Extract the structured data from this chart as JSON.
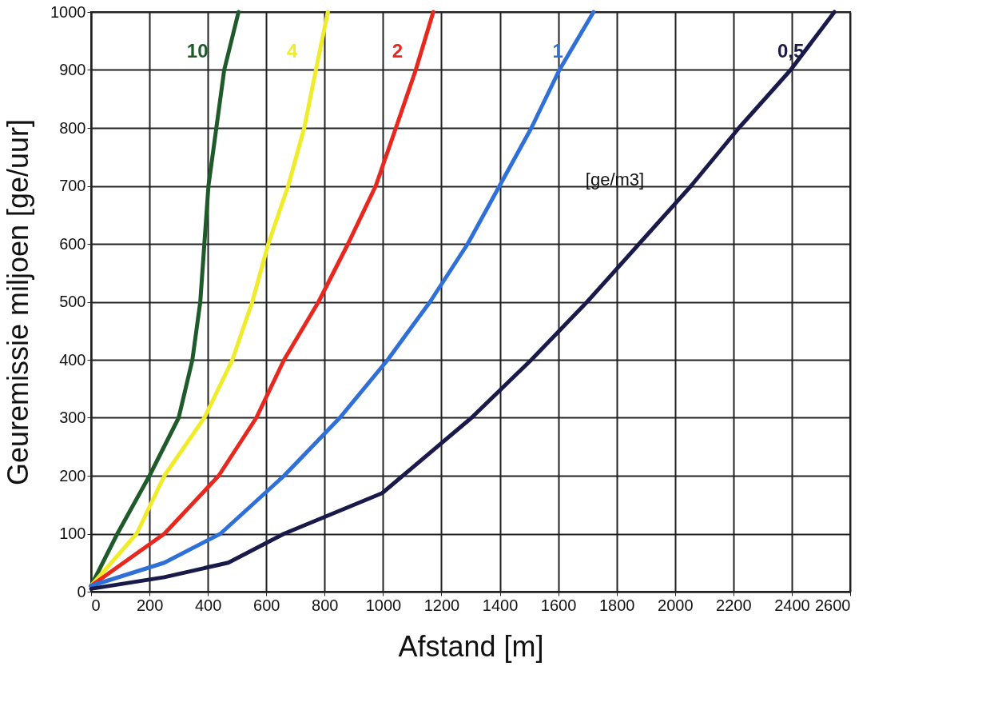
{
  "chart_data": {
    "type": "line",
    "xlabel": "Afstand [m]",
    "ylabel": "Geuremissie miljoen [ge/uur]",
    "xlim": [
      0,
      2600
    ],
    "xticks": [
      0,
      200,
      400,
      600,
      800,
      1000,
      1200,
      1400,
      1600,
      1800,
      2000,
      2200,
      2400,
      2600
    ],
    "ylim": [
      0,
      1000
    ],
    "yticks": [
      0,
      100,
      200,
      300,
      400,
      500,
      600,
      700,
      800,
      900,
      1000
    ],
    "grid": true,
    "marker": "none",
    "line_style": "solid",
    "annotations": [
      "[ge/m3]"
    ],
    "series": [
      {
        "name": "10",
        "color": "#1e5a2a",
        "x": [
          0,
          90,
          200,
          300,
          347,
          374,
          388,
          402,
          429,
          456,
          505
        ],
        "values": [
          10,
          100,
          200,
          300,
          400,
          500,
          600,
          700,
          800,
          900,
          1000
        ]
      },
      {
        "name": "4",
        "color": "#f0ec2a",
        "x": [
          0,
          156,
          251,
          388,
          484,
          552,
          607,
          675,
          730,
          770,
          811
        ],
        "values": [
          10,
          100,
          200,
          300,
          400,
          500,
          600,
          700,
          800,
          900,
          1000
        ]
      },
      {
        "name": "2",
        "color": "#e8281e",
        "x": [
          0,
          251,
          437,
          566,
          661,
          779,
          880,
          975,
          1044,
          1112,
          1172
        ],
        "values": [
          10,
          100,
          200,
          300,
          400,
          500,
          600,
          700,
          800,
          900,
          1000
        ]
      },
      {
        "name": "1",
        "color": "#2f6fd8",
        "x": [
          0,
          251,
          443,
          661,
          852,
          1016,
          1161,
          1290,
          1399,
          1508,
          1604,
          1721
        ],
        "values": [
          10,
          50,
          100,
          200,
          300,
          400,
          500,
          600,
          700,
          800,
          900,
          1000
        ]
      },
      {
        "name": "0,5",
        "color": "#1a1a4a",
        "x": [
          0,
          251,
          470,
          661,
          997,
          1303,
          1508,
          1699,
          1877,
          2055,
          2219,
          2396,
          2546
        ],
        "values": [
          5,
          25,
          50,
          100,
          170,
          300,
          400,
          500,
          600,
          700,
          800,
          900,
          1000
        ]
      }
    ]
  }
}
